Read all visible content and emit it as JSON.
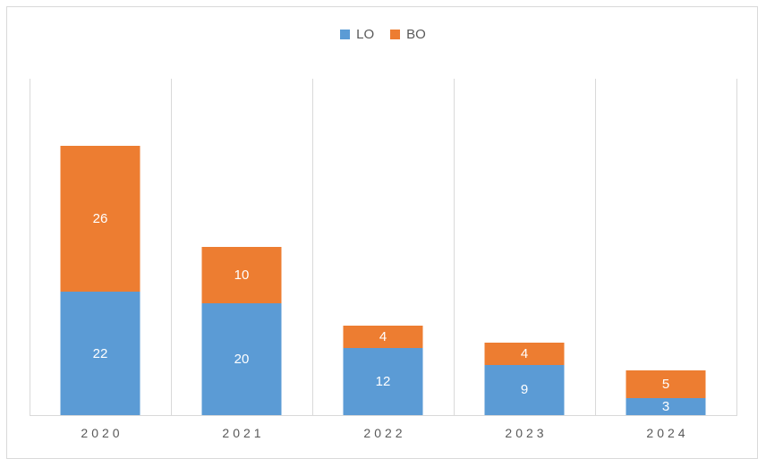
{
  "chart_data": {
    "type": "bar",
    "stacked": true,
    "title": "",
    "categories": [
      "2020",
      "2021",
      "2022",
      "2023",
      "2024"
    ],
    "series": [
      {
        "name": "LO",
        "color": "#5B9BD5",
        "values": [
          22,
          20,
          12,
          9,
          3
        ]
      },
      {
        "name": "BO",
        "color": "#ED7D31",
        "values": [
          26,
          10,
          4,
          4,
          5
        ]
      }
    ],
    "totals": [
      48,
      30,
      16,
      13,
      8
    ],
    "ylim": [
      0,
      60
    ],
    "xlabel": "",
    "ylabel": "",
    "legend_position": "top-center",
    "grid": "vertical-category-separators",
    "data_labels": "per-segment, white, centered"
  },
  "colors": {
    "background": "#FFFFFF",
    "frame_border": "#D9D9D9",
    "gridline": "#D9D9D9",
    "axis_line": "#D9D9D9",
    "axis_label_text": "#595959",
    "legend_text": "#595959",
    "data_label_text": "#FFFFFF",
    "series_lo": "#5B9BD5",
    "series_bo": "#ED7D31"
  }
}
